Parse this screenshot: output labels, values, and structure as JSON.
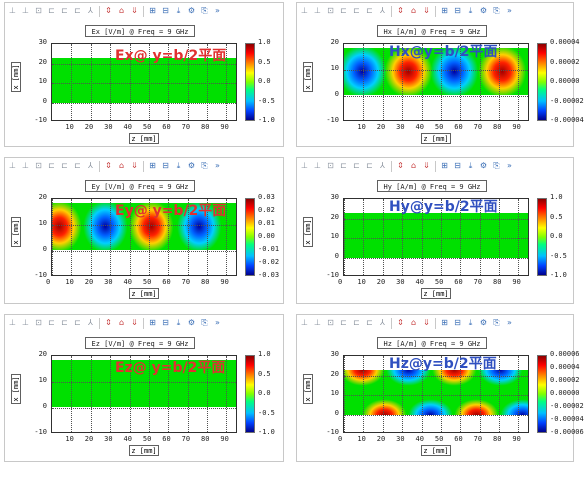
{
  "toolbar_icons": [
    "zoom-x-icon",
    "zoom-y-icon",
    "zoom-box-icon",
    "fit-x-icon",
    "fit-y-icon",
    "fit-all-icon",
    "cursor-icon",
    "arrow-up-icon",
    "arrow-home-icon",
    "arrow-down-icon",
    "grid-icon",
    "grid-alt-icon",
    "export-icon",
    "settings-icon",
    "copy-icon",
    "more-icon"
  ],
  "panels": [
    {
      "id": "ex",
      "plot_title": "Ex [V/m] @ Freq = 9 GHz",
      "annotation": "Ex@ y=b/2平面",
      "annotation_color": "#e03030",
      "y_ticks": [
        "30",
        "20",
        "10",
        "0",
        "-10"
      ],
      "x_ticks": [
        "10",
        "20",
        "30",
        "40",
        "50",
        "60",
        "70",
        "80",
        "90"
      ],
      "x_label": "z [mm]",
      "y_label": "x [mm]",
      "cbar_ticks": [
        "1.0",
        "0.5",
        "0.0",
        "-0.5",
        "-1.0"
      ],
      "field_type": "uniform"
    },
    {
      "id": "hx",
      "plot_title": "Hx [A/m] @ Freq = 9 GHz",
      "annotation": "Hx@y=b/2平面",
      "annotation_color": "#3050c0",
      "y_ticks": [
        "20",
        "10",
        "0",
        "-10"
      ],
      "x_ticks": [
        "10",
        "20",
        "30",
        "40",
        "50",
        "60",
        "70",
        "80",
        "90"
      ],
      "x_label": "z [mm]",
      "y_label": "x [mm]",
      "cbar_ticks": [
        "0.00004",
        "0.00002",
        "0.00000",
        "-0.00002",
        "-0.00004"
      ],
      "field_type": "hx"
    },
    {
      "id": "ey",
      "plot_title": "Ey [V/m] @ Freq = 9 GHz",
      "annotation": "Ey@ y=b/2平面",
      "annotation_color": "#e03030",
      "y_ticks": [
        "20",
        "10",
        "0",
        "-10"
      ],
      "x_ticks": [
        "0",
        "10",
        "20",
        "30",
        "40",
        "50",
        "60",
        "70",
        "80",
        "90"
      ],
      "x_label": "z [mm]",
      "y_label": "x [mm]",
      "cbar_ticks": [
        "0.03",
        "0.02",
        "0.01",
        "0.00",
        "-0.01",
        "-0.02",
        "-0.03"
      ],
      "field_type": "ey"
    },
    {
      "id": "hy",
      "plot_title": "Hy [A/m] @ Freq = 9 GHz",
      "annotation": "Hy@y=b/2平面",
      "annotation_color": "#3050c0",
      "y_ticks": [
        "30",
        "20",
        "10",
        "0",
        "-10"
      ],
      "x_ticks": [
        "0",
        "10",
        "20",
        "30",
        "40",
        "50",
        "60",
        "70",
        "80",
        "90"
      ],
      "x_label": "z [mm]",
      "y_label": "x [mm]",
      "cbar_ticks": [
        "1.0",
        "0.5",
        "0.0",
        "-0.5",
        "-1.0"
      ],
      "field_type": "uniform"
    },
    {
      "id": "ez",
      "plot_title": "Ez [V/m] @ Freq = 9 GHz",
      "annotation": "Ez@ y=b/2平面",
      "annotation_color": "#e03030",
      "y_ticks": [
        "20",
        "10",
        "0",
        "-10"
      ],
      "x_ticks": [
        "10",
        "20",
        "30",
        "40",
        "50",
        "60",
        "70",
        "80",
        "90"
      ],
      "x_label": "z [mm]",
      "y_label": "x [mm]",
      "cbar_ticks": [
        "1.0",
        "0.5",
        "0.0",
        "-0.5",
        "-1.0"
      ],
      "field_type": "uniform"
    },
    {
      "id": "hz",
      "plot_title": "Hz [A/m] @ Freq = 9 GHz",
      "annotation": "Hz@y=b/2平面",
      "annotation_color": "#3050c0",
      "y_ticks": [
        "30",
        "20",
        "10",
        "0",
        "-10"
      ],
      "x_ticks": [
        "0",
        "10",
        "20",
        "30",
        "40",
        "50",
        "60",
        "70",
        "80",
        "90"
      ],
      "x_label": "z [mm]",
      "y_label": "x [mm]",
      "cbar_ticks": [
        "0.00006",
        "0.00004",
        "0.00002",
        "0.00000",
        "-0.00002",
        "-0.00004",
        "-0.00006"
      ],
      "field_type": "hz"
    }
  ]
}
